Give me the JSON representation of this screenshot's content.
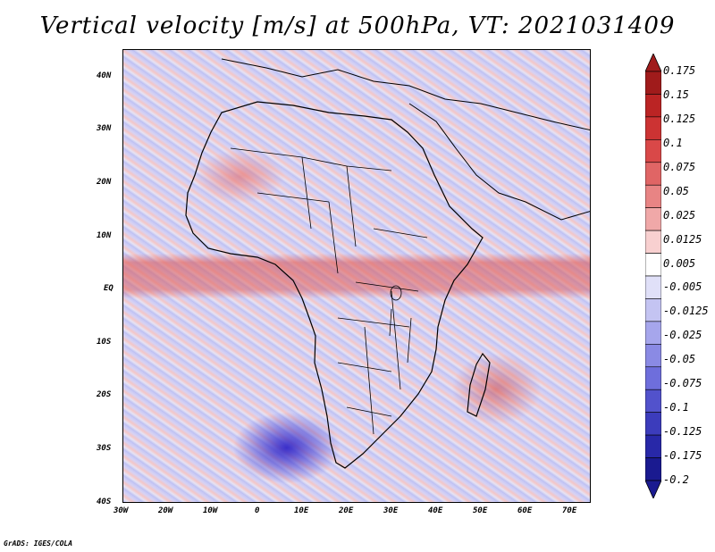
{
  "title": "Vertical velocity [m/s] at 500hPa, VT: 2021031409",
  "footer": "GrADS: IGES/COLA",
  "map": {
    "lat_labels": [
      "40N",
      "30N",
      "20N",
      "10N",
      "EQ",
      "10S",
      "20S",
      "30S",
      "40S"
    ],
    "lon_labels": [
      "30W",
      "20W",
      "10W",
      "0",
      "10E",
      "20E",
      "30E",
      "40E",
      "50E",
      "60E",
      "70E"
    ]
  },
  "colorbar": {
    "labels": [
      "0.175",
      "0.15",
      "0.125",
      "0.1",
      "0.075",
      "0.05",
      "0.025",
      "0.0125",
      "0.005",
      "-0.005",
      "-0.0125",
      "-0.025",
      "-0.05",
      "-0.075",
      "-0.1",
      "-0.125",
      "-0.175",
      "-0.2"
    ],
    "colors": [
      "#a01b1b",
      "#bb2424",
      "#cc3333",
      "#d94848",
      "#e06565",
      "#e88484",
      "#f0a8a8",
      "#f8d0d0",
      "#ffffff",
      "#e0e0f8",
      "#c4c4f2",
      "#a6a6ec",
      "#8a8ae4",
      "#6e6edc",
      "#5252cc",
      "#3c3cbc",
      "#2828a8",
      "#1a1a90"
    ]
  }
}
